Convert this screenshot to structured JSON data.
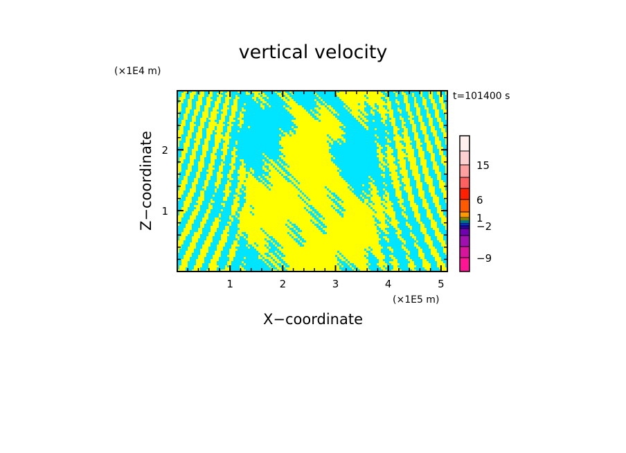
{
  "chart_data": {
    "type": "heatmap",
    "title": "vertical velocity",
    "xlabel": "X−coordinate",
    "ylabel": "Z−coordinate",
    "x_unit": "(×1E5 m)",
    "y_unit": "(×1E4 m)",
    "time_label": "t=101400 s",
    "xlim": [
      0.0,
      5.12
    ],
    "ylim": [
      0.0,
      2.97
    ],
    "x_ticks": [
      {
        "value": 1,
        "label": "1"
      },
      {
        "value": 2,
        "label": "2"
      },
      {
        "value": 3,
        "label": "3"
      },
      {
        "value": 4,
        "label": "4"
      },
      {
        "value": 5,
        "label": "5"
      }
    ],
    "y_ticks": [
      {
        "value": 1,
        "label": "1"
      },
      {
        "value": 2,
        "label": "2"
      }
    ],
    "field_colors": {
      "positive": "#ffff00",
      "negative": "#00e5ff"
    },
    "colorbar": {
      "levels": [
        -12,
        -9,
        -7,
        -5,
        -3,
        -2,
        -1,
        -0.5,
        0,
        0.5,
        1,
        3,
        6,
        9,
        12,
        15,
        20,
        25
      ],
      "colors": [
        "#ff1493",
        "#d6149c",
        "#a010b0",
        "#7000b0",
        "#2a00b8",
        "#0030d0",
        "#00e5ff",
        "#00e5ff",
        "#ffff00",
        "#ffff00",
        "#ff9900",
        "#ff5a00",
        "#ff2000",
        "#ff6060",
        "#ffa0a0",
        "#ffd0d0",
        "#fff0f0"
      ],
      "labels": [
        {
          "value": 15,
          "label": "15"
        },
        {
          "value": 6,
          "label": "6"
        },
        {
          "value": 1,
          "label": "1"
        },
        {
          "value": -2,
          "label": "−2"
        },
        {
          "value": -9,
          "label": "−9"
        }
      ]
    }
  }
}
